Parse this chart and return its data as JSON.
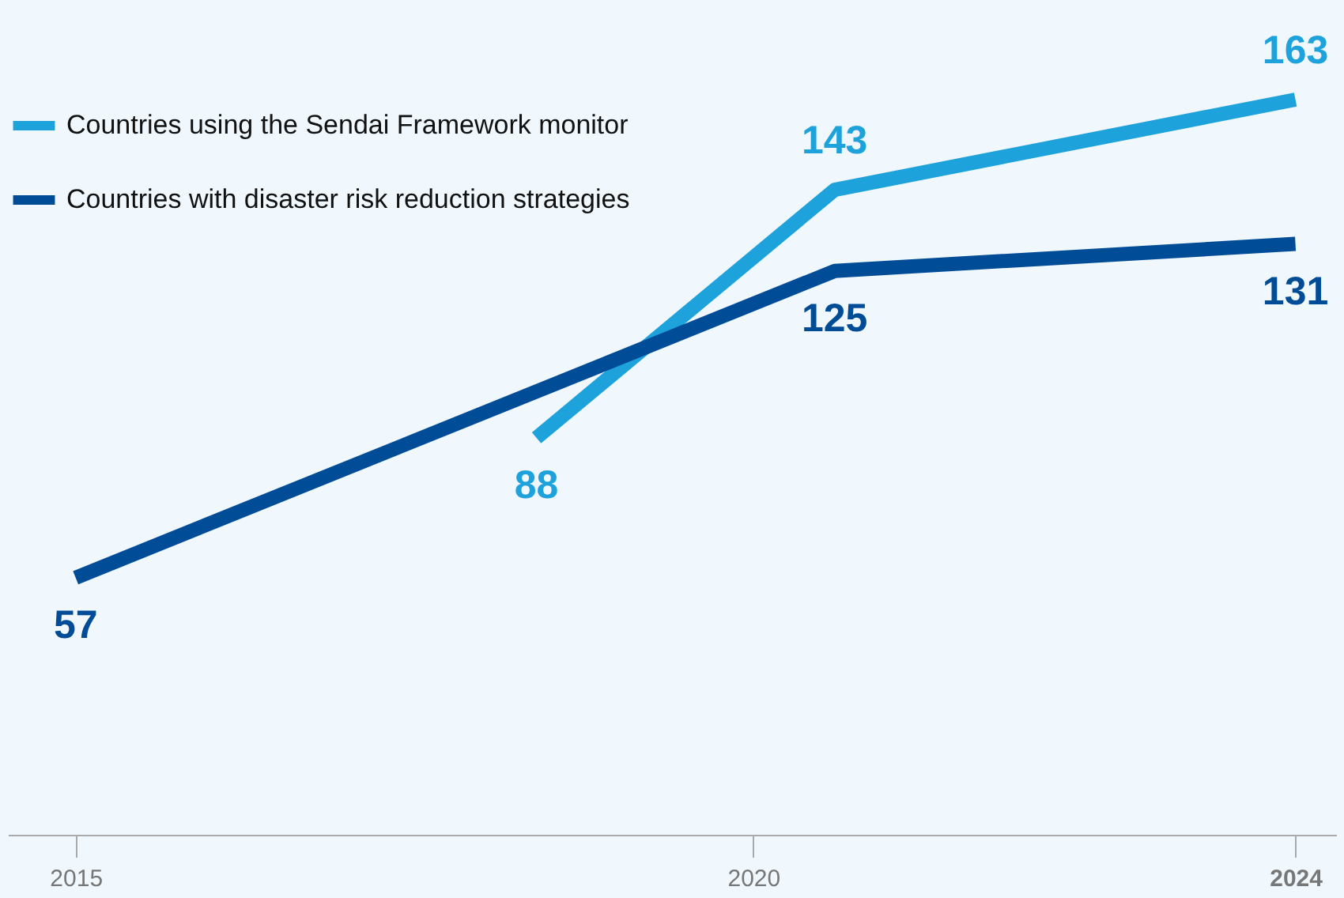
{
  "chart_data": {
    "type": "line",
    "series": [
      {
        "name": "Countries using the Sendai Framework monitor",
        "color": "#1ea2dc",
        "x": [
          2018.4,
          2020.6,
          2024
        ],
        "values": [
          88,
          143,
          163
        ]
      },
      {
        "name": "Countries with disaster risk reduction strategies",
        "color": "#004c97",
        "x": [
          2015,
          2020.6,
          2024
        ],
        "values": [
          57,
          125,
          131
        ]
      }
    ],
    "xlim": [
      2014.5,
      2024.3
    ],
    "xticks": [
      2015,
      2020,
      2024
    ],
    "data_labels": true,
    "legend": "top left",
    "grid": false,
    "marker": "none",
    "line_style": "solid",
    "tick_labels": "x"
  }
}
